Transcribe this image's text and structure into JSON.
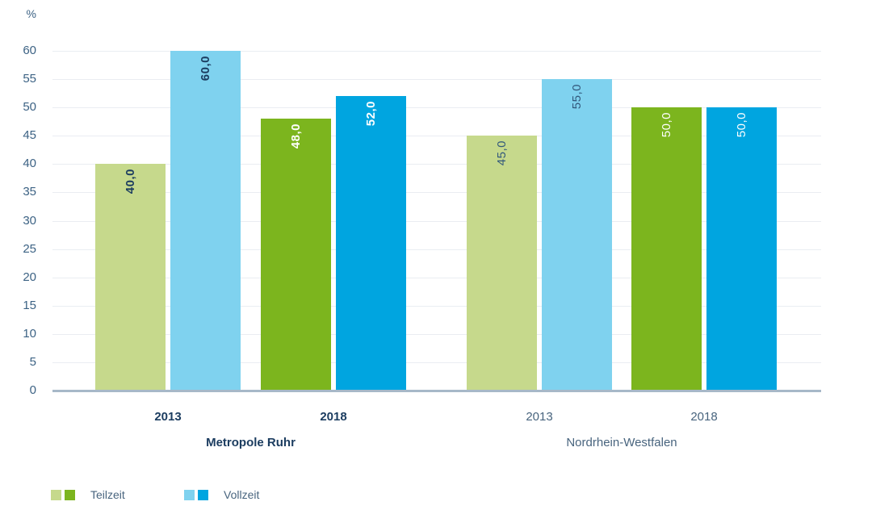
{
  "chart_data": {
    "type": "bar",
    "title": "",
    "unit_label": "%",
    "ylabel": "%",
    "xlabel": "",
    "ylim": [
      0,
      60
    ],
    "ytick_step": 5,
    "grid": true,
    "legend_position": "bottom",
    "value_label_rotation": -90,
    "categories": [
      "Metropole Ruhr 2013",
      "Metropole Ruhr 2018",
      "Nordrhein-Westfalen 2013",
      "Nordrhein-Westfalen 2018"
    ],
    "series": [
      {
        "name": "Teilzeit",
        "values": [
          40.0,
          48.0,
          45.0,
          50.0
        ]
      },
      {
        "name": "Vollzeit",
        "values": [
          60.0,
          52.0,
          55.0,
          50.0
        ]
      }
    ],
    "groups": [
      {
        "region": "Metropole Ruhr",
        "emphasized": true,
        "pairs": [
          {
            "year": "2013",
            "bars": [
              {
                "series": "Teilzeit",
                "value": 40.0,
                "label": "40,0",
                "bar_color": "#c6d98c",
                "label_color": "#1c3d60",
                "label_bold": true
              },
              {
                "series": "Vollzeit",
                "value": 60.0,
                "label": "60,0",
                "bar_color": "#7fd2ef",
                "label_color": "#1c3d60",
                "label_bold": true
              }
            ]
          },
          {
            "year": "2018",
            "bars": [
              {
                "series": "Teilzeit",
                "value": 48.0,
                "label": "48,0",
                "bar_color": "#7cb51e",
                "label_color": "#ffffff",
                "label_bold": true
              },
              {
                "series": "Vollzeit",
                "value": 52.0,
                "label": "52,0",
                "bar_color": "#00a5e0",
                "label_color": "#ffffff",
                "label_bold": true
              }
            ]
          }
        ]
      },
      {
        "region": "Nordrhein-Westfalen",
        "emphasized": false,
        "pairs": [
          {
            "year": "2013",
            "bars": [
              {
                "series": "Teilzeit",
                "value": 45.0,
                "label": "45,0",
                "bar_color": "#c6d98c",
                "label_color": "#32587b",
                "label_bold": false
              },
              {
                "series": "Vollzeit",
                "value": 55.0,
                "label": "55,0",
                "bar_color": "#7fd2ef",
                "label_color": "#32587b",
                "label_bold": false
              }
            ]
          },
          {
            "year": "2018",
            "bars": [
              {
                "series": "Teilzeit",
                "value": 50.0,
                "label": "50,0",
                "bar_color": "#7cb51e",
                "label_color": "#ffffff",
                "label_bold": false
              },
              {
                "series": "Vollzeit",
                "value": 50.0,
                "label": "50,0",
                "bar_color": "#00a5e0",
                "label_color": "#ffffff",
                "label_bold": false
              }
            ]
          }
        ]
      }
    ],
    "legend": [
      {
        "label": "Teilzeit",
        "swatches": [
          "#c6d98c",
          "#7cb51e"
        ]
      },
      {
        "label": "Vollzeit",
        "swatches": [
          "#7fd2ef",
          "#00a5e0"
        ]
      }
    ]
  },
  "colors": {
    "background": "#ffffff",
    "grid_line": "#eaedf2",
    "axis_line": "#a7b8c8",
    "tick_label": "#3c6284",
    "emphasis_text": "#1c3d60",
    "regular_text": "#48647e"
  }
}
